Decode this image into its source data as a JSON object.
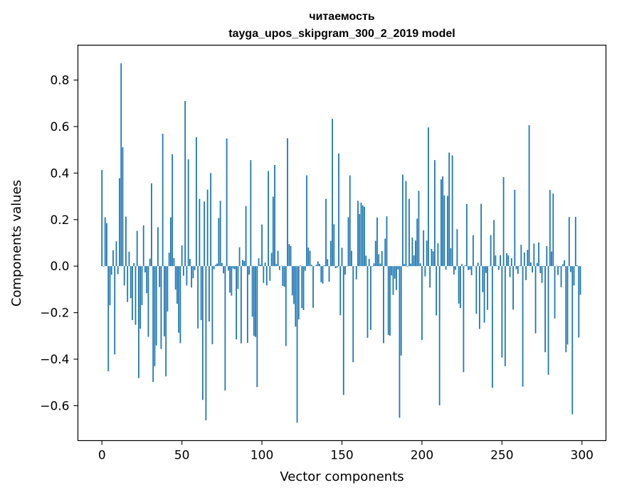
{
  "chart_data": {
    "type": "bar",
    "title": "читаемость",
    "subtitle": "tayga_upos_skipgram_300_2_2019 model",
    "xlabel": "Vector components",
    "ylabel": "Components values",
    "xlim": [
      -15,
      315
    ],
    "ylim": [
      -0.75,
      0.95
    ],
    "xticks": [
      0,
      50,
      100,
      150,
      200,
      250,
      300
    ],
    "xtick_labels": [
      "0",
      "50",
      "100",
      "150",
      "200",
      "250",
      "300"
    ],
    "yticks": [
      -0.6,
      -0.4,
      -0.2,
      0.0,
      0.2,
      0.4,
      0.6,
      0.8
    ],
    "ytick_labels": [
      "−0.6",
      "−0.4",
      "−0.2",
      "0.0",
      "0.2",
      "0.4",
      "0.6",
      "0.8"
    ],
    "grid": false,
    "bar_color": "#1f77b4",
    "values": [
      0.414,
      -0.002,
      0.21,
      0.185,
      -0.452,
      -0.168,
      -0.037,
      0.068,
      -0.379,
      0.107,
      -0.034,
      0.378,
      0.872,
      0.511,
      -0.083,
      0.213,
      -0.154,
      0.062,
      -0.138,
      -0.232,
      0.013,
      -0.252,
      0.152,
      -0.481,
      -0.269,
      -0.167,
      0.175,
      -0.027,
      -0.116,
      -0.304,
      0.032,
      0.356,
      -0.498,
      -0.43,
      -0.341,
      0.167,
      -0.09,
      -0.356,
      0.569,
      -0.302,
      -0.474,
      -0.195,
      0.058,
      0.21,
      0.481,
      0.035,
      -0.101,
      -0.162,
      -0.286,
      -0.331,
      0.089,
      -0.041,
      0.71,
      -0.083,
      0.459,
      0.031,
      -0.092,
      -0.052,
      -0.017,
      0.554,
      -0.268,
      0.289,
      -0.232,
      -0.575,
      0.278,
      -0.663,
      0.329,
      -0.238,
      0.4,
      -0.336,
      -0.013,
      0.006,
      0.011,
      0.207,
      0.281,
      0.014,
      -0.031,
      -0.535,
      0.549,
      -0.019,
      -0.114,
      -0.127,
      -0.01,
      -0.013,
      -0.315,
      -0.098,
      0.081,
      -0.332,
      0.027,
      0.022,
      0.258,
      -0.33,
      -0.037,
      0.456,
      -0.217,
      -0.3,
      -0.304,
      -0.52,
      0.034,
      0.006,
      0.179,
      -0.072,
      0.015,
      -0.083,
      0.409,
      -0.063,
      0.057,
      0.299,
      0.435,
      0.009,
      0.066,
      -0.017,
      0.002,
      -0.085,
      -0.089,
      -0.343,
      0.55,
      0.095,
      0.087,
      -0.126,
      -0.163,
      -0.26,
      -0.673,
      -0.229,
      0.003,
      -0.181,
      -0.189,
      -0.02,
      0.39,
      0.08,
      0.066,
      0.006,
      -0.179,
      -0.001,
      0.006,
      0.021,
      0.01,
      -0.069,
      -0.075,
      0.004,
      0.289,
      0.03,
      -0.067,
      0.109,
      0.633,
      0.18,
      -0.009,
      -0.006,
      0.484,
      -0.211,
      0.079,
      -0.554,
      -0.037,
      -0.002,
      0.21,
      0.39,
      0.066,
      -0.413,
      -0.001,
      -0.057,
      0.281,
      0.224,
      0.273,
      0.261,
      0.255,
      0.045,
      -0.308,
      0.031,
      -0.274,
      -0.002,
      0.012,
      0.109,
      0.209,
      0.051,
      0.011,
      0.065,
      -0.331,
      0.118,
      0.214,
      -0.296,
      -0.299,
      -0.04,
      -0.124,
      -0.054,
      -0.103,
      -0.014,
      -0.652,
      -0.384,
      0.394,
      0.009,
      0.366,
      -0.003,
      0.289,
      0.011,
      0.123,
      0.046,
      0.11,
      0.204,
      0.324,
      0.012,
      -0.318,
      0.154,
      -0.044,
      0.11,
      0.596,
      -0.092,
      0.074,
      0.064,
      0.456,
      -0.212,
      0.098,
      -0.598,
      0.373,
      0.386,
      0.304,
      -0.015,
      0.302,
      0.488,
      0.077,
      0.476,
      -0.036,
      -0.016,
      0.159,
      -0.161,
      -0.18,
      0.009,
      -0.456,
      0.004,
      0.267,
      -0.017,
      -0.015,
      -0.039,
      0.133,
      0.001,
      -0.205,
      0.015,
      -0.27,
      0.268,
      -0.112,
      -0.243,
      -0.029,
      -0.188,
      0.001,
      0.133,
      -0.523,
      0.198,
      0.046,
      0.002,
      -0.016,
      0.047,
      -0.393,
      0.383,
      -0.43,
      0.056,
      0.046,
      -0.047,
      0.034,
      -0.187,
      0.328,
      -0.013,
      -0.033,
      0.002,
      0.092,
      -0.518,
      0.059,
      -0.06,
      0.07,
      0.606,
      0.016,
      -0.027,
      0.097,
      -0.289,
      0.013,
      0.102,
      -0.03,
      -0.072,
      -0.003,
      -0.37,
      0.086,
      -0.467,
      0.327,
      0.063,
      0.312,
      -0.225,
      0.002,
      -0.038,
      -0.003,
      -0.091,
      0.008,
      0.025,
      -0.37,
      -0.337,
      0.211,
      -0.025,
      -0.637,
      -0.083,
      0.212,
      0.004,
      -0.307,
      -0.123
    ]
  }
}
